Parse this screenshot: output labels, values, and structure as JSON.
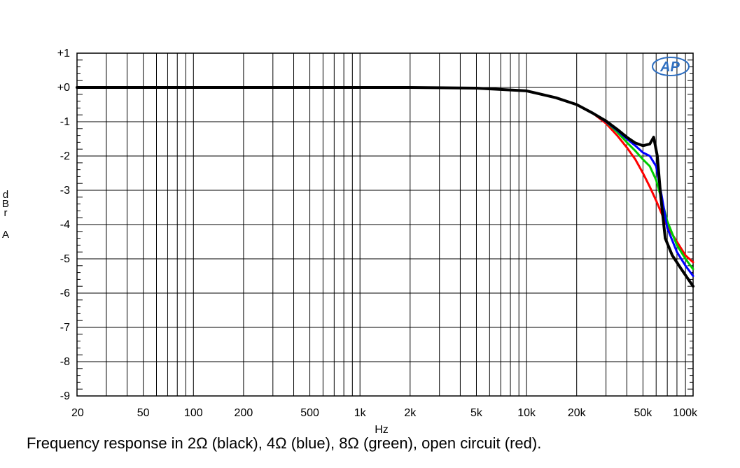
{
  "chart_data": {
    "type": "line",
    "title": "",
    "xlabel": "Hz",
    "ylabel": "dBr A",
    "x_scale": "log",
    "xlim": [
      20,
      100000
    ],
    "ylim": [
      -9,
      1
    ],
    "grid": true,
    "legend": "none",
    "logo": "AP",
    "x_ticks": [
      {
        "value": 20,
        "label": "20"
      },
      {
        "value": 50,
        "label": "50"
      },
      {
        "value": 100,
        "label": "100"
      },
      {
        "value": 200,
        "label": "200"
      },
      {
        "value": 500,
        "label": "500"
      },
      {
        "value": 1000,
        "label": "1k"
      },
      {
        "value": 2000,
        "label": "2k"
      },
      {
        "value": 5000,
        "label": "5k"
      },
      {
        "value": 10000,
        "label": "10k"
      },
      {
        "value": 20000,
        "label": "20k"
      },
      {
        "value": 50000,
        "label": "50k"
      },
      {
        "value": 100000,
        "label": "100k"
      }
    ],
    "y_ticks": [
      {
        "value": 1,
        "label": "+1"
      },
      {
        "value": 0,
        "label": "+0"
      },
      {
        "value": -1,
        "label": "-1"
      },
      {
        "value": -2,
        "label": "-2"
      },
      {
        "value": -3,
        "label": "-3"
      },
      {
        "value": -4,
        "label": "-4"
      },
      {
        "value": -5,
        "label": "-5"
      },
      {
        "value": -6,
        "label": "-6"
      },
      {
        "value": -7,
        "label": "-7"
      },
      {
        "value": -8,
        "label": "-8"
      },
      {
        "value": -9,
        "label": "-9"
      }
    ],
    "series": [
      {
        "color": "#ff0000",
        "width": 3,
        "points": [
          [
            20,
            0
          ],
          [
            200,
            0
          ],
          [
            2000,
            0
          ],
          [
            5000,
            -0.02
          ],
          [
            10000,
            -0.1
          ],
          [
            15000,
            -0.3
          ],
          [
            20000,
            -0.5
          ],
          [
            25000,
            -0.75
          ],
          [
            30000,
            -1.05
          ],
          [
            35000,
            -1.4
          ],
          [
            40000,
            -1.75
          ],
          [
            45000,
            -2.1
          ],
          [
            50000,
            -2.5
          ],
          [
            55000,
            -2.9
          ],
          [
            60000,
            -3.3
          ],
          [
            65000,
            -3.7
          ],
          [
            70000,
            -4.05
          ],
          [
            80000,
            -4.5
          ],
          [
            90000,
            -4.9
          ],
          [
            100000,
            -5.1
          ]
        ]
      },
      {
        "color": "#00cc00",
        "width": 3,
        "points": [
          [
            20,
            0
          ],
          [
            200,
            0
          ],
          [
            2000,
            0
          ],
          [
            5000,
            -0.02
          ],
          [
            10000,
            -0.1
          ],
          [
            15000,
            -0.3
          ],
          [
            20000,
            -0.5
          ],
          [
            25000,
            -0.75
          ],
          [
            30000,
            -1.0
          ],
          [
            35000,
            -1.3
          ],
          [
            40000,
            -1.6
          ],
          [
            45000,
            -1.85
          ],
          [
            50000,
            -2.1
          ],
          [
            55000,
            -2.3
          ],
          [
            60000,
            -2.7
          ],
          [
            65000,
            -3.3
          ],
          [
            70000,
            -3.9
          ],
          [
            80000,
            -4.6
          ],
          [
            90000,
            -5.0
          ],
          [
            100000,
            -5.3
          ]
        ]
      },
      {
        "color": "#0000ff",
        "width": 3,
        "points": [
          [
            20,
            0
          ],
          [
            200,
            0
          ],
          [
            2000,
            0
          ],
          [
            5000,
            -0.02
          ],
          [
            10000,
            -0.1
          ],
          [
            15000,
            -0.3
          ],
          [
            20000,
            -0.5
          ],
          [
            25000,
            -0.75
          ],
          [
            30000,
            -1.0
          ],
          [
            35000,
            -1.25
          ],
          [
            40000,
            -1.5
          ],
          [
            45000,
            -1.7
          ],
          [
            50000,
            -1.9
          ],
          [
            55000,
            -2.0
          ],
          [
            60000,
            -2.3
          ],
          [
            65000,
            -3.2
          ],
          [
            70000,
            -4.1
          ],
          [
            80000,
            -4.8
          ],
          [
            90000,
            -5.2
          ],
          [
            100000,
            -5.5
          ]
        ]
      },
      {
        "color": "#000000",
        "width": 4,
        "points": [
          [
            20,
            0
          ],
          [
            200,
            0
          ],
          [
            2000,
            0
          ],
          [
            5000,
            -0.02
          ],
          [
            10000,
            -0.1
          ],
          [
            15000,
            -0.3
          ],
          [
            20000,
            -0.5
          ],
          [
            25000,
            -0.75
          ],
          [
            30000,
            -0.98
          ],
          [
            35000,
            -1.22
          ],
          [
            40000,
            -1.45
          ],
          [
            45000,
            -1.62
          ],
          [
            50000,
            -1.7
          ],
          [
            55000,
            -1.65
          ],
          [
            58000,
            -1.45
          ],
          [
            61000,
            -2.0
          ],
          [
            64000,
            -3.2
          ],
          [
            68000,
            -4.4
          ],
          [
            75000,
            -4.9
          ],
          [
            85000,
            -5.3
          ],
          [
            100000,
            -5.8
          ]
        ]
      }
    ]
  },
  "caption": "Frequency response in 2Ω (black), 4Ω (blue), 8Ω (green), open circuit (red)."
}
